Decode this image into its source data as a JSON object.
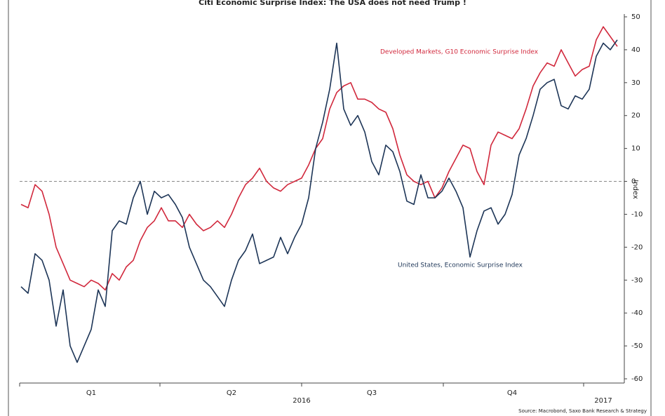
{
  "chart_data": {
    "type": "line",
    "title": "Citi Economic Surprise Index: The USA does not need Trump !",
    "y_label": "Index",
    "source": "Source: Macrobond, Saxo Bank Research & Strategy",
    "categories": [
      null,
      null,
      null,
      null,
      null,
      null,
      null,
      null,
      null,
      null,
      "Q1",
      null,
      null,
      null,
      null,
      null,
      null,
      null,
      null,
      null,
      null,
      null,
      null,
      null,
      null,
      null,
      null,
      null,
      null,
      null,
      "Q2",
      null,
      null,
      null,
      null,
      null,
      null,
      null,
      null,
      null,
      "2016",
      null,
      null,
      null,
      null,
      null,
      null,
      null,
      null,
      null,
      "Q3",
      null,
      null,
      null,
      null,
      null,
      null,
      null,
      null,
      null,
      null,
      null,
      null,
      null,
      null,
      null,
      null,
      null,
      null,
      null,
      "Q4",
      null,
      null,
      null,
      null,
      null,
      null,
      null,
      null,
      null,
      null,
      null,
      null,
      "2017",
      null,
      null
    ],
    "series": [
      {
        "name": "Developed Markets, G10 Economic Surprise Index",
        "color": "#d1283c",
        "values": [
          -7,
          -8,
          -1,
          -3,
          -10,
          -20,
          -25,
          -30,
          -31,
          -32,
          -30,
          -31,
          -33,
          -28,
          -30,
          -26,
          -24,
          -18,
          -14,
          -12,
          -8,
          -12,
          -12,
          -14,
          -10,
          -13,
          -15,
          -14,
          -12,
          -14,
          -10,
          -5,
          -1,
          1,
          4,
          0,
          -2,
          -3,
          -1,
          0,
          1,
          5,
          10,
          13,
          22,
          27,
          29,
          30,
          25,
          25,
          24,
          22,
          21,
          16,
          8,
          2,
          0,
          -1,
          0,
          -5,
          -2,
          3,
          7,
          11,
          10,
          3,
          -1,
          11,
          15,
          14,
          13,
          16,
          22,
          29,
          33,
          36,
          35,
          40,
          36,
          32,
          34,
          35,
          43,
          47,
          44,
          41
        ]
      },
      {
        "name": "United States, Economic Surprise Index",
        "color": "#1d3557",
        "values": [
          -32,
          -34,
          -22,
          -24,
          -30,
          -44,
          -33,
          -50,
          -55,
          -50,
          -45,
          -33,
          -38,
          -15,
          -12,
          -13,
          -5,
          0,
          -10,
          -3,
          -5,
          -4,
          -7,
          -11,
          -20,
          -25,
          -30,
          -32,
          -35,
          -38,
          -30,
          -24,
          -21,
          -16,
          -25,
          -24,
          -23,
          -17,
          -22,
          -17,
          -13,
          -5,
          10,
          18,
          28,
          42,
          22,
          17,
          20,
          15,
          6,
          2,
          11,
          9,
          3,
          -6,
          -7,
          2,
          -5,
          -5,
          -3,
          1,
          -3,
          -8,
          -23,
          -15,
          -9,
          -8,
          -13,
          -10,
          -4,
          8,
          13,
          20,
          28,
          30,
          31,
          23,
          22,
          26,
          25,
          28,
          38,
          42,
          40,
          43
        ]
      }
    ],
    "ylim": [
      -60,
      50
    ],
    "yticks": [
      50,
      40,
      30,
      20,
      10,
      0,
      -10,
      -20,
      -30,
      -40,
      -50,
      -60
    ],
    "zero_line": true
  }
}
